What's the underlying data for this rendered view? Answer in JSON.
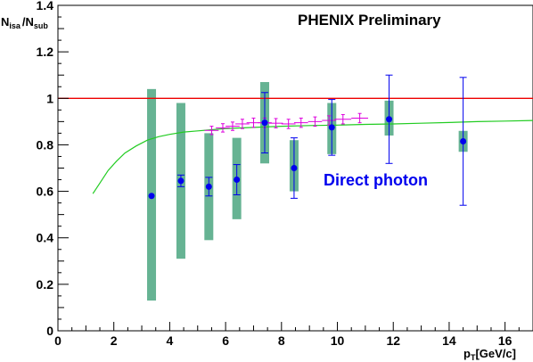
{
  "chart_data": {
    "type": "scatter",
    "title": "PHENIX Preliminary",
    "xlabel": {
      "main": "p",
      "sub": "T",
      "rest": "[GeV/c]"
    },
    "ylabel": {
      "num": "N",
      "num_sub": "isa",
      "sep": "/",
      "den": "N",
      "den_sub": "sub"
    },
    "xlim": [
      0,
      17
    ],
    "ylim": [
      0,
      1.4
    ],
    "x_ticks": [
      0,
      2,
      4,
      6,
      8,
      10,
      12,
      14,
      16
    ],
    "y_ticks": [
      {
        "value": 0,
        "label": "0"
      },
      {
        "value": 0.2,
        "label": "0.2"
      },
      {
        "value": 0.4,
        "label": "0.4"
      },
      {
        "value": 0.6,
        "label": "0.6"
      },
      {
        "value": 0.8,
        "label": "0.8"
      },
      {
        "value": 1.0,
        "label": "1"
      },
      {
        "value": 1.2,
        "label": "1.2"
      },
      {
        "value": 1.4,
        "label": "1.4"
      }
    ],
    "annotation": {
      "text": "Direct photon",
      "color": "#0000ee"
    },
    "reference_line": {
      "y": 1.0,
      "color": "#ee0000"
    },
    "series": [
      {
        "kind": "points_with_errors",
        "color": "#0000ee",
        "points": [
          {
            "x": 3.35,
            "y": 0.58,
            "err": 0.0,
            "sys_lo": 0.13,
            "sys_hi": 1.04
          },
          {
            "x": 4.4,
            "y": 0.645,
            "err": 0.025,
            "sys_lo": 0.31,
            "sys_hi": 0.98
          },
          {
            "x": 5.4,
            "y": 0.62,
            "err": 0.04,
            "sys_lo": 0.39,
            "sys_hi": 0.85
          },
          {
            "x": 6.4,
            "y": 0.65,
            "err": 0.065,
            "sys_lo": 0.48,
            "sys_hi": 0.83
          },
          {
            "x": 7.4,
            "y": 0.895,
            "err": 0.13,
            "sys_lo": 0.72,
            "sys_hi": 1.07
          },
          {
            "x": 8.45,
            "y": 0.7,
            "err": 0.13,
            "sys_lo": 0.6,
            "sys_hi": 0.82
          },
          {
            "x": 9.8,
            "y": 0.875,
            "err": 0.12,
            "sys_lo": 0.76,
            "sys_hi": 0.98
          },
          {
            "x": 11.85,
            "y": 0.91,
            "err": 0.19,
            "sys_lo": 0.84,
            "sys_hi": 0.99
          },
          {
            "x": 14.5,
            "y": 0.815,
            "err": 0.275,
            "sys_lo": 0.77,
            "sys_hi": 0.86
          }
        ],
        "systematic_color": "#66b393"
      },
      {
        "kind": "points_with_errors",
        "color": "#dd00dd",
        "points": [
          {
            "x": 5.5,
            "y": 0.862,
            "xerr": 0.25,
            "err": 0.018
          },
          {
            "x": 5.9,
            "y": 0.873,
            "xerr": 0.25,
            "err": 0.018
          },
          {
            "x": 6.25,
            "y": 0.88,
            "xerr": 0.25,
            "err": 0.018
          },
          {
            "x": 6.6,
            "y": 0.89,
            "xerr": 0.25,
            "err": 0.02
          },
          {
            "x": 7.0,
            "y": 0.895,
            "xerr": 0.25,
            "err": 0.02
          },
          {
            "x": 7.4,
            "y": 0.895,
            "xerr": 0.25,
            "err": 0.02
          },
          {
            "x": 7.8,
            "y": 0.893,
            "xerr": 0.25,
            "err": 0.02
          },
          {
            "x": 8.25,
            "y": 0.89,
            "xerr": 0.25,
            "err": 0.02
          },
          {
            "x": 8.7,
            "y": 0.895,
            "xerr": 0.25,
            "err": 0.02
          },
          {
            "x": 9.2,
            "y": 0.9,
            "xerr": 0.25,
            "err": 0.02
          },
          {
            "x": 9.7,
            "y": 0.905,
            "xerr": 0.25,
            "err": 0.02
          },
          {
            "x": 10.2,
            "y": 0.91,
            "xerr": 0.3,
            "err": 0.02
          },
          {
            "x": 10.8,
            "y": 0.915,
            "xerr": 0.3,
            "err": 0.02
          }
        ]
      },
      {
        "kind": "curve",
        "color": "#22cc22",
        "points": [
          [
            1.25,
            0.59
          ],
          [
            1.5,
            0.635
          ],
          [
            1.8,
            0.69
          ],
          [
            2.1,
            0.73
          ],
          [
            2.4,
            0.765
          ],
          [
            2.8,
            0.795
          ],
          [
            3.2,
            0.82
          ],
          [
            3.6,
            0.835
          ],
          [
            4.0,
            0.845
          ],
          [
            4.5,
            0.855
          ],
          [
            5.0,
            0.86
          ],
          [
            5.5,
            0.865
          ],
          [
            6.0,
            0.87
          ],
          [
            7.0,
            0.875
          ],
          [
            8.0,
            0.88
          ],
          [
            9.0,
            0.883
          ],
          [
            10.0,
            0.885
          ],
          [
            11.0,
            0.888
          ],
          [
            12.0,
            0.89
          ],
          [
            13.0,
            0.893
          ],
          [
            14.0,
            0.896
          ],
          [
            15.0,
            0.9
          ],
          [
            16.0,
            0.902
          ],
          [
            17.0,
            0.905
          ]
        ]
      }
    ]
  }
}
